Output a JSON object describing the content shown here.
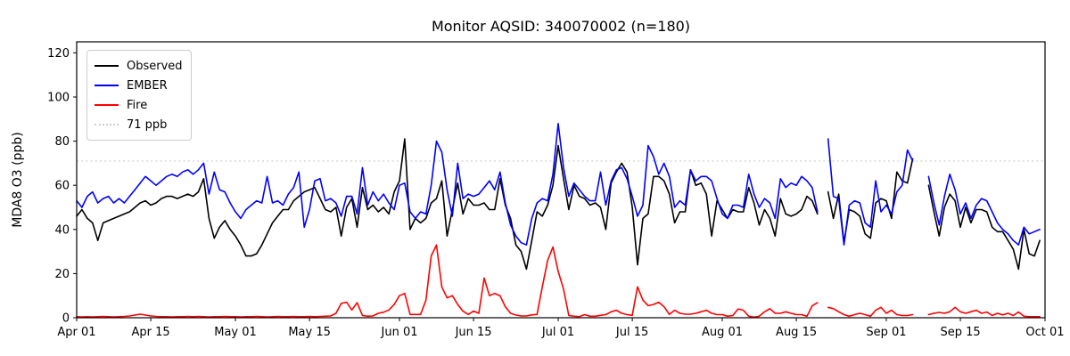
{
  "figure": {
    "title": "Monitor AQSID: 340070002 (n=180)",
    "y_axis_label": "MDA8 O3 (ppb)"
  },
  "chart_data": {
    "type": "line",
    "title": "Monitor AQSID: 340070002 (n=180)",
    "xlabel": "",
    "ylabel": "MDA8 O3 (ppb)",
    "ylim": [
      0,
      125
    ],
    "yticks": [
      0,
      20,
      40,
      60,
      80,
      100,
      120
    ],
    "x_unit": "days since Apr 01, one point per day",
    "x_range_days": [
      0,
      183
    ],
    "xticks": [
      {
        "day": 0,
        "label": "Apr 01"
      },
      {
        "day": 14,
        "label": "Apr 15"
      },
      {
        "day": 30,
        "label": "May 01"
      },
      {
        "day": 44,
        "label": "May 15"
      },
      {
        "day": 61,
        "label": "Jun 01"
      },
      {
        "day": 75,
        "label": "Jun 15"
      },
      {
        "day": 91,
        "label": "Jul 01"
      },
      {
        "day": 105,
        "label": "Jul 15"
      },
      {
        "day": 122,
        "label": "Aug 01"
      },
      {
        "day": 136,
        "label": "Aug 15"
      },
      {
        "day": 153,
        "label": "Sep 01"
      },
      {
        "day": 167,
        "label": "Sep 15"
      },
      {
        "day": 183,
        "label": "Oct 01"
      }
    ],
    "grid": false,
    "legend_position": "upper left",
    "reference_line": {
      "value": 71,
      "label": "71 ppb",
      "color": "#cccccc",
      "style": "dotted"
    },
    "legend": [
      {
        "label": "Observed",
        "color": "#000000",
        "style": "solid"
      },
      {
        "label": "EMBER",
        "color": "#0000ff",
        "style": "solid"
      },
      {
        "label": "Fire",
        "color": "#ff0000",
        "style": "solid"
      },
      {
        "label": "71 ppb",
        "color": "#cccccc",
        "style": "dotted"
      }
    ],
    "series": [
      {
        "name": "Observed",
        "color": "#000000",
        "values": [
          46,
          49,
          45,
          43,
          35,
          43,
          44,
          45,
          46,
          47,
          48,
          50,
          52,
          53,
          51,
          52,
          54,
          55,
          55,
          54,
          55,
          56,
          55,
          57,
          63,
          45,
          36,
          41,
          44,
          40,
          37,
          33,
          28,
          28,
          29,
          33,
          38,
          43,
          46,
          49,
          49,
          53,
          55,
          57,
          58,
          59,
          54,
          49,
          48,
          50,
          37,
          50,
          54,
          41,
          59,
          49,
          51,
          48,
          50,
          47,
          57,
          62,
          81,
          40,
          45,
          43,
          45,
          52,
          54,
          62,
          37,
          49,
          61,
          47,
          54,
          51,
          51,
          52,
          49,
          49,
          63,
          51,
          45,
          33,
          30,
          22,
          35,
          48,
          46,
          51,
          60,
          78,
          63,
          49,
          60,
          55,
          54,
          51,
          52,
          50,
          40,
          61,
          66,
          70,
          66,
          50,
          24,
          45,
          47,
          64,
          64,
          62,
          56,
          43,
          48,
          48,
          67,
          60,
          61,
          56,
          37,
          53,
          49,
          45,
          49,
          48,
          48,
          59,
          52,
          42,
          49,
          45,
          37,
          54,
          47,
          46,
          47,
          49,
          55,
          53,
          47,
          null,
          57,
          45,
          56,
          34,
          49,
          48,
          46,
          38,
          36,
          52,
          54,
          53,
          45,
          66,
          62,
          61,
          72,
          null,
          null,
          60,
          48,
          37,
          50,
          56,
          53,
          41,
          50,
          43,
          49,
          49,
          48,
          41,
          39,
          39,
          35,
          31,
          22,
          40,
          29,
          28,
          35,
          null
        ]
      },
      {
        "name": "EMBER",
        "color": "#0000ff",
        "values": [
          53,
          50,
          55,
          57,
          52,
          54,
          55,
          52,
          54,
          52,
          55,
          58,
          61,
          64,
          62,
          60,
          62,
          64,
          65,
          64,
          66,
          67,
          65,
          67,
          70,
          56,
          66,
          58,
          57,
          52,
          48,
          45,
          49,
          51,
          53,
          52,
          64,
          52,
          53,
          51,
          56,
          59,
          66,
          41,
          49,
          62,
          63,
          53,
          54,
          52,
          46,
          55,
          55,
          47,
          68,
          51,
          57,
          53,
          56,
          52,
          49,
          60,
          61,
          48,
          45,
          48,
          47,
          60,
          80,
          75,
          58,
          46,
          70,
          54,
          56,
          55,
          56,
          59,
          62,
          58,
          66,
          52,
          42,
          37,
          34,
          33,
          45,
          52,
          54,
          53,
          65,
          88,
          68,
          55,
          61,
          58,
          55,
          53,
          53,
          66,
          51,
          62,
          67,
          68,
          63,
          55,
          46,
          51,
          78,
          73,
          65,
          70,
          64,
          50,
          53,
          51,
          67,
          62,
          64,
          64,
          62,
          54,
          47,
          45,
          51,
          51,
          50,
          65,
          56,
          50,
          54,
          52,
          45,
          63,
          59,
          61,
          60,
          64,
          62,
          59,
          48,
          null,
          81,
          55,
          54,
          33,
          51,
          53,
          52,
          43,
          41,
          62,
          48,
          51,
          47,
          57,
          60,
          76,
          71,
          null,
          null,
          64,
          52,
          42,
          55,
          65,
          58,
          47,
          52,
          45,
          51,
          54,
          53,
          48,
          43,
          40,
          38,
          35,
          33,
          41,
          38,
          39,
          40,
          null
        ]
      },
      {
        "name": "Fire",
        "color": "#ff0000",
        "values": [
          0.5,
          0.4,
          0.5,
          0.4,
          0.5,
          0.6,
          0.5,
          0.4,
          0.5,
          0.6,
          0.8,
          1.2,
          1.6,
          1.2,
          0.8,
          0.6,
          0.5,
          0.5,
          0.4,
          0.5,
          0.5,
          0.6,
          0.5,
          0.6,
          0.5,
          0.4,
          0.5,
          0.5,
          0.6,
          0.5,
          0.5,
          0.4,
          0.5,
          0.5,
          0.6,
          0.5,
          0.4,
          0.5,
          0.6,
          0.5,
          0.5,
          0.6,
          0.5,
          0.5,
          0.6,
          0.5,
          0.6,
          0.7,
          0.8,
          2,
          6.5,
          7,
          3.5,
          6.8,
          1,
          0.7,
          0.8,
          2,
          2.5,
          3.5,
          6,
          10,
          11,
          1.5,
          1.5,
          1.5,
          8,
          28,
          33,
          14,
          9,
          10,
          6,
          3,
          1.5,
          3,
          2,
          18,
          10,
          11,
          10,
          5,
          2,
          1.2,
          0.8,
          0.8,
          1.3,
          1.5,
          14,
          26,
          32,
          21,
          13,
          1,
          0.7,
          0.5,
          1.4,
          0.7,
          0.7,
          1.1,
          1.4,
          2.7,
          3.4,
          2,
          1.4,
          1.1,
          14,
          8,
          5.5,
          6,
          7,
          5,
          1.5,
          3.4,
          2,
          1.6,
          1.6,
          2,
          2.7,
          3.4,
          2,
          1.4,
          1.4,
          0.7,
          1,
          4,
          3.4,
          0.7,
          0.3,
          0.7,
          2.7,
          4.1,
          2,
          2,
          2.7,
          2,
          1.4,
          1.4,
          0.7,
          5.4,
          6.8,
          null,
          4.7,
          4.1,
          2.7,
          1.4,
          0.7,
          1.4,
          2,
          1.4,
          0.7,
          3.4,
          4.7,
          2,
          3.4,
          1.4,
          1,
          1,
          1.4,
          null,
          null,
          1.4,
          2,
          2.4,
          2,
          2.7,
          4.7,
          2.7,
          2,
          2.7,
          3.4,
          2,
          2.6,
          1,
          2,
          1.3,
          2,
          1,
          2.6,
          0.7,
          0.5,
          0.5,
          0.5,
          null
        ]
      }
    ]
  }
}
